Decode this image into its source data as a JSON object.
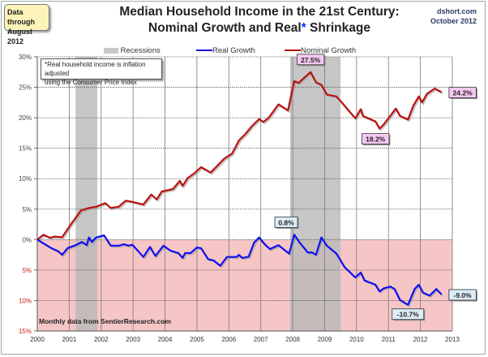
{
  "header": {
    "data_note_line1": "Data through",
    "data_note_line2": "August 2012",
    "title_line1": "Median Household Income in the 21st Century:",
    "title_line2_a": "Nominal  Growth and Real",
    "title_line2_ast": "*",
    "title_line2_b": " Shrinkage",
    "source_line1": "dshort.com",
    "source_line2": "October 2012"
  },
  "chart_data": {
    "type": "line",
    "title": "Median Household Income in the 21st Century: Nominal Growth and Real* Shrinkage",
    "xlim": [
      2000,
      2013
    ],
    "ylim": [
      -15,
      30
    ],
    "x_ticks": [
      "2000",
      "2001",
      "2002",
      "2003",
      "2004",
      "2005",
      "2006",
      "2007",
      "2008",
      "2009",
      "2010",
      "2011",
      "2012",
      "2013"
    ],
    "y_ticks": [
      {
        "value": 30,
        "label": "30%"
      },
      {
        "value": 25,
        "label": "25%"
      },
      {
        "value": 20,
        "label": "20%"
      },
      {
        "value": 15,
        "label": "15%"
      },
      {
        "value": 10,
        "label": "10%"
      },
      {
        "value": 5,
        "label": "5%"
      },
      {
        "value": 0,
        "label": "0%"
      },
      {
        "value": -5,
        "label": "5%"
      },
      {
        "value": -10,
        "label": "10%"
      },
      {
        "value": -15,
        "label": "15%"
      }
    ],
    "grid": true,
    "legend_placement": "top",
    "legend": {
      "recessions": "Recessions",
      "real": "Real Growth",
      "nominal": "Nominal Growth"
    },
    "colors": {
      "real": "#1010ee",
      "nominal": "#bb1111",
      "recession": "#b8b8b8",
      "negative_zone": "#f6c6c6",
      "positive_tick": "#444444",
      "negative_tick": "#cc2222"
    },
    "recessions": [
      [
        2001.2,
        2001.88
      ],
      [
        2007.92,
        2009.5
      ]
    ],
    "series": [
      {
        "name": "Nominal Growth",
        "points": [
          [
            2000.0,
            0
          ],
          [
            2000.19,
            0.8
          ],
          [
            2000.4,
            0.3
          ],
          [
            2000.55,
            0.5
          ],
          [
            2000.78,
            0.4
          ],
          [
            2001.12,
            3.0
          ],
          [
            2001.37,
            4.8
          ],
          [
            2001.62,
            5.2
          ],
          [
            2001.84,
            5.4
          ],
          [
            2002.13,
            6.0
          ],
          [
            2002.3,
            5.2
          ],
          [
            2002.55,
            5.4
          ],
          [
            2002.77,
            6.4
          ],
          [
            2002.98,
            6.2
          ],
          [
            2003.32,
            5.75
          ],
          [
            2003.57,
            7.4
          ],
          [
            2003.74,
            6.6
          ],
          [
            2003.9,
            7.9
          ],
          [
            2004.25,
            8.3
          ],
          [
            2004.46,
            9.65
          ],
          [
            2004.55,
            8.8
          ],
          [
            2004.71,
            10.1
          ],
          [
            2004.92,
            10.9
          ],
          [
            2005.13,
            11.9
          ],
          [
            2005.43,
            11.0
          ],
          [
            2005.86,
            13.3
          ],
          [
            2006.1,
            14.1
          ],
          [
            2006.32,
            16.3
          ],
          [
            2006.53,
            17.4
          ],
          [
            2006.7,
            18.5
          ],
          [
            2006.95,
            19.8
          ],
          [
            2007.08,
            19.3
          ],
          [
            2007.25,
            20.0
          ],
          [
            2007.55,
            22.2
          ],
          [
            2007.85,
            21.2
          ],
          [
            2008.05,
            26.0
          ],
          [
            2008.18,
            25.7
          ],
          [
            2008.56,
            27.5
          ],
          [
            2008.73,
            25.8
          ],
          [
            2008.9,
            25.4
          ],
          [
            2009.07,
            23.8
          ],
          [
            2009.37,
            23.5
          ],
          [
            2009.62,
            22.0
          ],
          [
            2009.96,
            19.9
          ],
          [
            2010.13,
            21.4
          ],
          [
            2010.2,
            20.3
          ],
          [
            2010.59,
            19.4
          ],
          [
            2010.72,
            18.2
          ],
          [
            2010.85,
            18.9
          ],
          [
            2011.23,
            21.5
          ],
          [
            2011.36,
            20.3
          ],
          [
            2011.61,
            19.7
          ],
          [
            2011.78,
            22.0
          ],
          [
            2011.95,
            23.5
          ],
          [
            2012.05,
            22.5
          ],
          [
            2012.2,
            23.9
          ],
          [
            2012.45,
            24.8
          ],
          [
            2012.66,
            24.2
          ]
        ]
      },
      {
        "name": "Real Growth",
        "points": [
          [
            2000.0,
            0
          ],
          [
            2000.44,
            -1.4
          ],
          [
            2000.65,
            -1.9
          ],
          [
            2000.78,
            -2.5
          ],
          [
            2000.95,
            -1.4
          ],
          [
            2001.2,
            -0.9
          ],
          [
            2001.4,
            -0.4
          ],
          [
            2001.55,
            -0.9
          ],
          [
            2001.62,
            0.35
          ],
          [
            2001.71,
            -0.4
          ],
          [
            2001.84,
            0.35
          ],
          [
            2002.09,
            0.7
          ],
          [
            2002.3,
            -1.0
          ],
          [
            2002.55,
            -1.0
          ],
          [
            2002.72,
            -0.75
          ],
          [
            2002.85,
            -1.0
          ],
          [
            2002.98,
            -0.85
          ],
          [
            2003.32,
            -2.85
          ],
          [
            2003.53,
            -1.2
          ],
          [
            2003.7,
            -2.7
          ],
          [
            2003.95,
            -1.0
          ],
          [
            2004.17,
            -1.8
          ],
          [
            2004.42,
            -2.2
          ],
          [
            2004.55,
            -3.0
          ],
          [
            2004.63,
            -2.2
          ],
          [
            2004.8,
            -2.2
          ],
          [
            2005.0,
            -1.3
          ],
          [
            2005.13,
            -1.4
          ],
          [
            2005.35,
            -3.2
          ],
          [
            2005.52,
            -3.4
          ],
          [
            2005.73,
            -4.3
          ],
          [
            2005.94,
            -2.85
          ],
          [
            2006.24,
            -2.85
          ],
          [
            2006.32,
            -2.5
          ],
          [
            2006.41,
            -3.0
          ],
          [
            2006.62,
            -2.8
          ],
          [
            2006.79,
            -0.5
          ],
          [
            2006.95,
            0.35
          ],
          [
            2007.12,
            -0.75
          ],
          [
            2007.29,
            -1.55
          ],
          [
            2007.55,
            -0.9
          ],
          [
            2007.89,
            -2.3
          ],
          [
            2008.05,
            0.8
          ],
          [
            2008.22,
            -0.5
          ],
          [
            2008.47,
            -2.1
          ],
          [
            2008.6,
            -2.1
          ],
          [
            2008.73,
            -2.5
          ],
          [
            2008.9,
            0.35
          ],
          [
            2009.07,
            -1.0
          ],
          [
            2009.37,
            -2.3
          ],
          [
            2009.62,
            -4.5
          ],
          [
            2009.96,
            -6.2
          ],
          [
            2010.13,
            -5.4
          ],
          [
            2010.25,
            -6.7
          ],
          [
            2010.59,
            -7.4
          ],
          [
            2010.72,
            -8.5
          ],
          [
            2010.85,
            -8.0
          ],
          [
            2011.06,
            -7.7
          ],
          [
            2011.19,
            -8.1
          ],
          [
            2011.36,
            -9.9
          ],
          [
            2011.61,
            -10.7
          ],
          [
            2011.82,
            -8.1
          ],
          [
            2011.95,
            -7.4
          ],
          [
            2012.08,
            -8.7
          ],
          [
            2012.29,
            -9.2
          ],
          [
            2012.5,
            -8.1
          ],
          [
            2012.66,
            -9.0
          ]
        ]
      }
    ],
    "annotations": [
      {
        "label": "27.5%",
        "series": "Nominal Growth",
        "x": 2008.56,
        "y": 27.5,
        "style": "pink"
      },
      {
        "label": "18.2%",
        "series": "Nominal Growth",
        "x": 2010.72,
        "y": 18.2,
        "style": "pink"
      },
      {
        "label": "24.2%",
        "series": "Nominal Growth",
        "x": 2012.66,
        "y": 24.2,
        "style": "pink"
      },
      {
        "label": "0.8%",
        "series": "Real Growth",
        "x": 2008.05,
        "y": 0.8,
        "style": "blue"
      },
      {
        "label": "-10.7%",
        "series": "Real Growth",
        "x": 2011.61,
        "y": -10.7,
        "style": "blue"
      },
      {
        "label": "-9.0%",
        "series": "Real Growth",
        "x": 2012.66,
        "y": -9.0,
        "style": "blue"
      }
    ],
    "note_line1": "*Real household  income is inflation adjusted",
    "note_line2": "using  the Consumer Price Index",
    "footnote": "Monthly data from SentierResearch.com"
  }
}
